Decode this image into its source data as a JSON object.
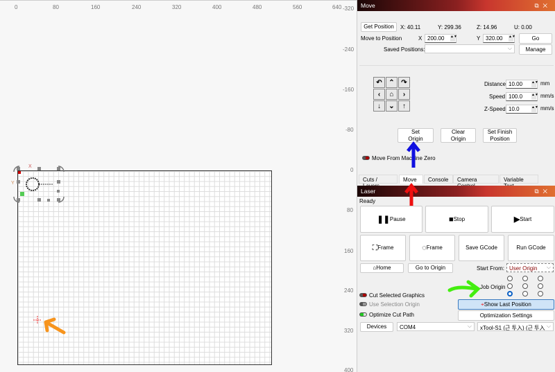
{
  "canvas": {
    "top_ruler": [
      "0",
      "80",
      "160",
      "240",
      "320",
      "400",
      "480",
      "560",
      "640"
    ],
    "side_ruler": [
      "-320",
      "-240",
      "-160",
      "-80",
      "0",
      "80",
      "160",
      "240",
      "320",
      "400"
    ],
    "handle_x_label": "X",
    "handle_y_label": "Y"
  },
  "move": {
    "title": "Move",
    "get_position": "Get Position",
    "x_pos": "X: 40.11",
    "y_pos": "Y: 299.36",
    "z_pos": "Z: 14.96",
    "u_pos": "U: 0.00",
    "move_to_label": "Move to Position",
    "x_label": "X",
    "x_value": "200.00",
    "y_label": "Y",
    "y_value": "320.00",
    "go": "Go",
    "saved_label": "Saved Positions:",
    "saved_value": "",
    "manage": "Manage",
    "distance_label": "Distance",
    "distance_value": "10.00",
    "distance_unit": "mm",
    "speed_label": "Speed",
    "speed_value": "100.0",
    "speed_unit": "mm/s",
    "zspeed_label": "Z-Speed",
    "zspeed_value": "10.0",
    "zspeed_unit": "mm/s",
    "set_origin": "Set Origin",
    "clear_origin": "Clear Origin",
    "set_finish": "Set Finish Position",
    "move_from_zero": "Move From Machine Zero"
  },
  "tabs": [
    {
      "label": "Cuts / Layers"
    },
    {
      "label": "Move",
      "active": true
    },
    {
      "label": "Console"
    },
    {
      "label": "Camera Control"
    },
    {
      "label": "Variable Text"
    }
  ],
  "laser": {
    "title": "Laser",
    "status": "Ready",
    "pause": "Pause",
    "stop": "Stop",
    "start": "Start",
    "frame1": "Frame",
    "frame2": "Frame",
    "save_gcode": "Save GCode",
    "run_gcode": "Run GCode",
    "home": "Home",
    "go_origin": "Go to Origin",
    "start_from_label": "Start From:",
    "start_from_value": "User Origin",
    "job_origin_label": "Job Origin",
    "job_origin_selected": "bottom-left",
    "cut_selected": "Cut Selected Graphics",
    "use_sel_origin": "Use Selection Origin",
    "optimize": "Optimize Cut Path",
    "show_last": "Show Last Position",
    "opt_settings": "Optimization Settings",
    "devices": "Devices",
    "port": "COM4",
    "device": "xTool-S1 (근 투入) (근 투入"
  },
  "annotations": {
    "blue": "#1010e0",
    "red": "#ee1010",
    "green": "#44ee10",
    "orange": "#f7941d"
  }
}
